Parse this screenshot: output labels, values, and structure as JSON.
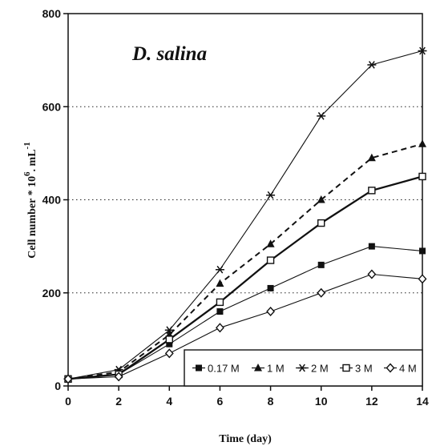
{
  "chart_data": {
    "type": "line",
    "annotation": "D. salina",
    "xlabel": "Time (day)",
    "ylabel": "Cell number * 10",
    "ylabel_sup": "6",
    "ylabel_unit": ". mL",
    "ylabel_unit_sup": "-1",
    "xlim": [
      0,
      14
    ],
    "ylim": [
      0,
      800
    ],
    "xticks": [
      0,
      2,
      4,
      6,
      8,
      10,
      12,
      14
    ],
    "xtick_labels": [
      "0",
      "2",
      "4",
      "6",
      "8",
      "10",
      "12",
      "14"
    ],
    "yticks": [
      0,
      200,
      400,
      600,
      800
    ],
    "ytick_labels": [
      "0",
      "200",
      "400",
      "600",
      "800"
    ],
    "grid": "horizontal dotted",
    "legend_position": "bottom-right",
    "x": [
      0,
      2,
      4,
      6,
      8,
      10,
      12,
      14
    ],
    "series": [
      {
        "name": "0.17 M",
        "marker": "filled-square",
        "line": "thin-solid",
        "values": [
          15,
          25,
          90,
          160,
          210,
          260,
          300,
          290
        ]
      },
      {
        "name": "1 M",
        "marker": "filled-triangle",
        "line": "dashed",
        "values": [
          15,
          30,
          110,
          220,
          305,
          400,
          490,
          520
        ]
      },
      {
        "name": "2 M",
        "marker": "asterisk",
        "line": "thin-solid",
        "values": [
          15,
          35,
          120,
          250,
          410,
          580,
          690,
          720
        ]
      },
      {
        "name": "3 M",
        "marker": "open-square",
        "line": "thick-solid",
        "values": [
          15,
          25,
          100,
          180,
          270,
          350,
          420,
          450
        ]
      },
      {
        "name": "4 M",
        "marker": "open-diamond",
        "line": "thin-solid",
        "values": [
          15,
          20,
          70,
          125,
          160,
          200,
          240,
          230
        ]
      }
    ]
  }
}
